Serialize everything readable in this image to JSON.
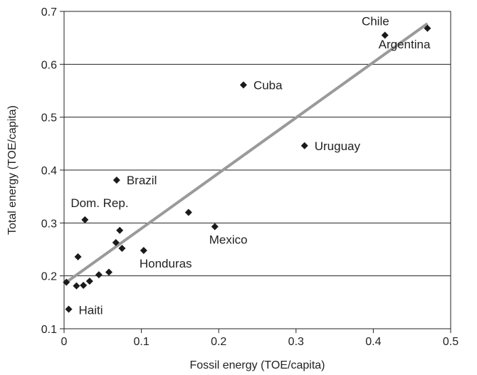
{
  "chart_data": {
    "type": "scatter",
    "title": "",
    "xlabel": "Fossil energy (TOE/capita)",
    "ylabel": "Total energy (TOE/capita)",
    "xlim": [
      0,
      0.5
    ],
    "ylim": [
      0.1,
      0.7
    ],
    "x_ticks": [
      "0",
      "0.1",
      "0.2",
      "0.3",
      "0.4",
      "0.5"
    ],
    "y_ticks": [
      "0.1",
      "0.2",
      "0.3",
      "0.4",
      "0.5",
      "0.6",
      "0.7"
    ],
    "grid": "horizontal",
    "marker_color": "#1a1a1a",
    "trendline": {
      "color": "#9a9a9a",
      "x": [
        0.003,
        0.47
      ],
      "y": [
        0.188,
        0.677
      ]
    },
    "points": [
      {
        "x": 0.003,
        "y": 0.188,
        "label": ""
      },
      {
        "x": 0.006,
        "y": 0.137,
        "label": "Haiti"
      },
      {
        "x": 0.016,
        "y": 0.181,
        "label": ""
      },
      {
        "x": 0.018,
        "y": 0.236,
        "label": ""
      },
      {
        "x": 0.025,
        "y": 0.182,
        "label": ""
      },
      {
        "x": 0.027,
        "y": 0.306,
        "label": "Dom. Rep."
      },
      {
        "x": 0.033,
        "y": 0.19,
        "label": ""
      },
      {
        "x": 0.045,
        "y": 0.202,
        "label": ""
      },
      {
        "x": 0.058,
        "y": 0.207,
        "label": ""
      },
      {
        "x": 0.067,
        "y": 0.263,
        "label": ""
      },
      {
        "x": 0.068,
        "y": 0.381,
        "label": "Brazil"
      },
      {
        "x": 0.072,
        "y": 0.286,
        "label": ""
      },
      {
        "x": 0.075,
        "y": 0.252,
        "label": ""
      },
      {
        "x": 0.103,
        "y": 0.248,
        "label": "Honduras"
      },
      {
        "x": 0.161,
        "y": 0.32,
        "label": ""
      },
      {
        "x": 0.195,
        "y": 0.293,
        "label": "Mexico"
      },
      {
        "x": 0.232,
        "y": 0.561,
        "label": "Cuba"
      },
      {
        "x": 0.311,
        "y": 0.446,
        "label": "Uruguay"
      },
      {
        "x": 0.415,
        "y": 0.655,
        "label": "Chile"
      },
      {
        "x": 0.47,
        "y": 0.668,
        "label": "Argentina"
      }
    ]
  }
}
